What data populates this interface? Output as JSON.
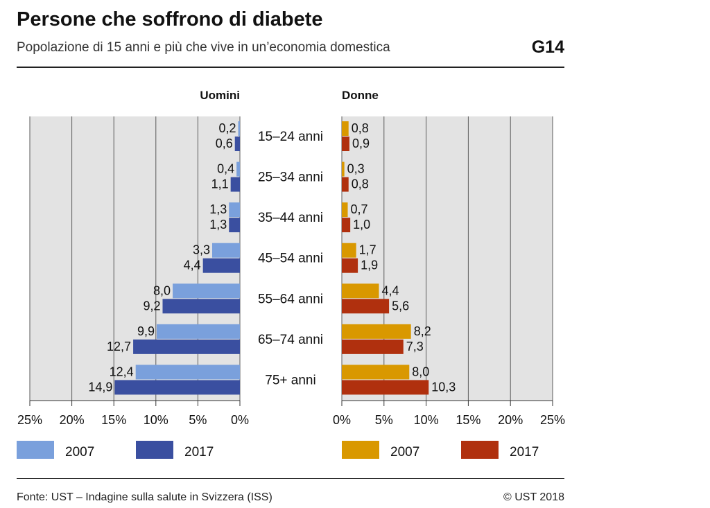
{
  "header": {
    "title": "Persone che soffrono di diabete",
    "subtitle": "Popolazione di 15 anni e più che vive in un’economia domestica",
    "code": "G14"
  },
  "footer": {
    "source": "Fonte: UST – Indagine sulla salute in Svizzera (ISS)",
    "copyright": "© UST 2018"
  },
  "chart_data": {
    "type": "bar",
    "orientation": "horizontal",
    "categories": [
      "15–24 anni",
      "25–34 anni",
      "35–44 anni",
      "45–54 anni",
      "55–64 anni",
      "65–74 anni",
      "75+ anni"
    ],
    "panels": [
      {
        "title": "Uomini",
        "direction": "left",
        "xlim": [
          0,
          25
        ],
        "ticks": [
          "25%",
          "20%",
          "15%",
          "10%",
          "5%",
          "0%"
        ],
        "series": [
          {
            "name": "2007",
            "color": "#7aa0dc",
            "values": [
              0.2,
              0.4,
              1.3,
              3.3,
              8.0,
              9.9,
              12.4
            ],
            "labels": [
              "0,2",
              "0,4",
              "1,3",
              "3,3",
              "8,0",
              "9,9",
              "12,4"
            ]
          },
          {
            "name": "2017",
            "color": "#3a4fa0",
            "values": [
              0.6,
              1.1,
              1.3,
              4.4,
              9.2,
              12.7,
              14.9
            ],
            "labels": [
              "0,6",
              "1,1",
              "1,3",
              "4,4",
              "9,2",
              "12,7",
              "14,9"
            ]
          }
        ]
      },
      {
        "title": "Donne",
        "direction": "right",
        "xlim": [
          0,
          25
        ],
        "ticks": [
          "0%",
          "5%",
          "10%",
          "15%",
          "20%",
          "25%"
        ],
        "series": [
          {
            "name": "2007",
            "color": "#d99800",
            "values": [
              0.8,
              0.3,
              0.7,
              1.7,
              4.4,
              8.2,
              8.0
            ],
            "labels": [
              "0,8",
              "0,3",
              "0,7",
              "1,7",
              "4,4",
              "8,2",
              "8,0"
            ]
          },
          {
            "name": "2017",
            "color": "#b0300e",
            "values": [
              0.9,
              0.8,
              1.0,
              1.9,
              5.6,
              7.3,
              10.3
            ],
            "labels": [
              "0,9",
              "0,8",
              "1,0",
              "1,9",
              "5,6",
              "7,3",
              "10,3"
            ]
          }
        ]
      }
    ],
    "grid": true,
    "legend": "bottom"
  }
}
